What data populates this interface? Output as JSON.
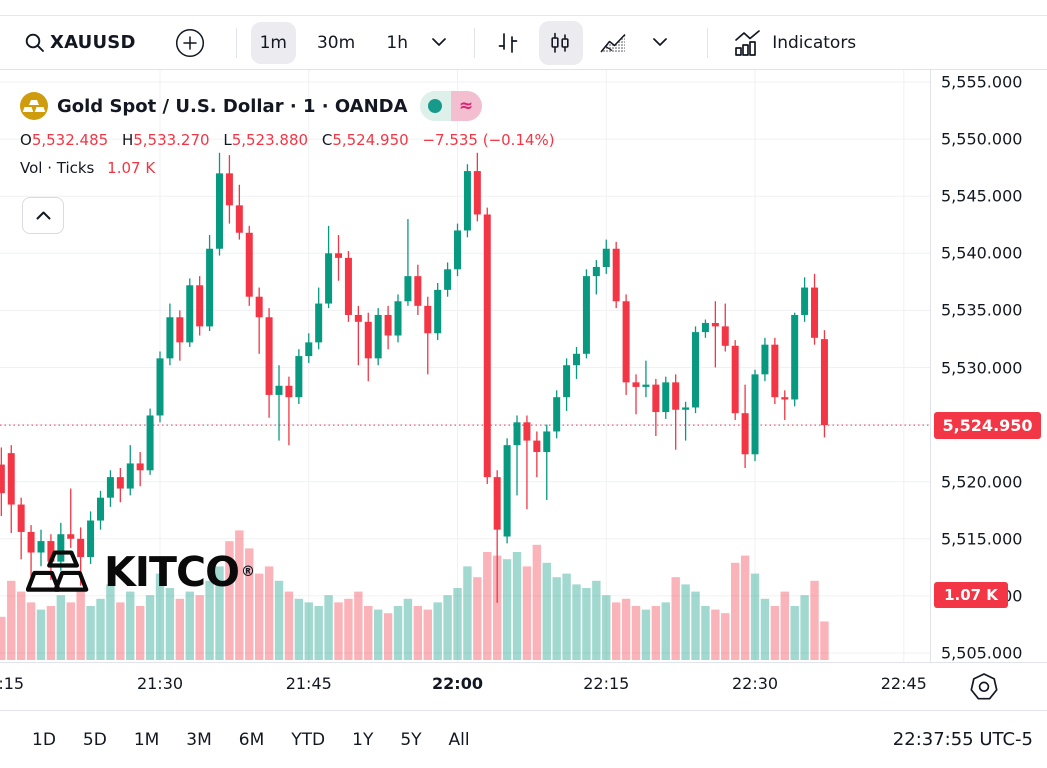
{
  "toolbar": {
    "symbol": "XAUUSD",
    "intervals": [
      "1m",
      "30m",
      "1h"
    ],
    "selected_interval": "1m",
    "selected_style": "candles",
    "indicators_label": "Indicators"
  },
  "legend": {
    "title": "Gold Spot / U.S. Dollar · 1 · OANDA",
    "ohlc": {
      "o_label": "O",
      "o": "5,532.485",
      "h_label": "H",
      "h": "5,533.270",
      "l_label": "L",
      "l": "5,523.880",
      "c_label": "C",
      "c": "5,524.950",
      "change": "−7.535 (−0.14%)"
    },
    "vol_label": "Vol · Ticks",
    "vol_value": "1.07 K"
  },
  "watermark": {
    "text": "KITCO",
    "reg": "®"
  },
  "price_axis": {
    "labels": [
      "5,555.000",
      "5,550.000",
      "5,545.000",
      "5,540.000",
      "5,535.000",
      "5,530.000",
      "5,525.000",
      "5,520.000",
      "5,515.000",
      "5,510.000",
      "5,505.000"
    ],
    "last_price_label": "5,524.950",
    "volume_badge": "1.07 K"
  },
  "bottom": {
    "ranges": [
      "1D",
      "5D",
      "1M",
      "3M",
      "6M",
      "YTD",
      "1Y",
      "5Y",
      "All"
    ],
    "clock": "22:37:55 UTC-5"
  },
  "colors": {
    "up": "#089981",
    "down": "#f23645",
    "accent_red": "#f23645",
    "grid": "#f0f1f4",
    "text": "#131722",
    "gold": "#cf9c0d"
  },
  "chart_data": {
    "type": "candlestick",
    "title": "Gold Spot / U.S. Dollar",
    "symbol": "XAUUSD",
    "venue": "OANDA",
    "interval": "1m",
    "start_time": "21:14",
    "ylim": [
      5505,
      5555
    ],
    "price_step": 5,
    "last_price": 5524.95,
    "last_volume_k": 1.07,
    "price_line": 5524.95,
    "time_ticks": [
      {
        "label": ":15",
        "i": 1,
        "bold": false
      },
      {
        "label": "21:30",
        "i": 16,
        "bold": false
      },
      {
        "label": "21:45",
        "i": 31,
        "bold": false
      },
      {
        "label": "22:00",
        "i": 46,
        "bold": true
      },
      {
        "label": "22:15",
        "i": 61,
        "bold": false
      },
      {
        "label": "22:30",
        "i": 76,
        "bold": false
      },
      {
        "label": "22:45",
        "i": 91,
        "bold": false
      }
    ],
    "candles": [
      [
        5521.5,
        5523.0,
        5517.0,
        5519.0,
        1.2
      ],
      [
        5522.5,
        5523.2,
        5515.5,
        5518.0,
        2.2
      ],
      [
        5518.0,
        5518.6,
        5513.2,
        5515.6,
        1.9
      ],
      [
        5515.6,
        5516.2,
        5511.6,
        5513.8,
        1.6
      ],
      [
        5513.8,
        5515.8,
        5512.6,
        5514.8,
        1.4
      ],
      [
        5514.8,
        5515.4,
        5511.4,
        5513.0,
        1.5
      ],
      [
        5513.0,
        5516.4,
        5512.2,
        5515.4,
        1.8
      ],
      [
        5515.4,
        5519.4,
        5514.2,
        5515.0,
        1.6
      ],
      [
        5515.0,
        5516.0,
        5510.9,
        5513.4,
        2.0
      ],
      [
        5513.4,
        5517.4,
        5512.8,
        5516.6,
        1.5
      ],
      [
        5516.6,
        5519.2,
        5515.8,
        5518.6,
        1.7
      ],
      [
        5518.6,
        5521.0,
        5517.8,
        5520.4,
        2.1
      ],
      [
        5520.4,
        5521.2,
        5518.2,
        5519.4,
        1.6
      ],
      [
        5519.4,
        5523.2,
        5518.8,
        5521.6,
        1.9
      ],
      [
        5521.6,
        5522.6,
        5519.6,
        5521.0,
        1.5
      ],
      [
        5521.0,
        5526.4,
        5520.6,
        5525.8,
        1.8
      ],
      [
        5525.8,
        5531.4,
        5525.2,
        5530.8,
        2.4
      ],
      [
        5530.8,
        5535.6,
        5530.2,
        5534.4,
        2.0
      ],
      [
        5534.4,
        5535.0,
        5530.6,
        5532.2,
        1.7
      ],
      [
        5532.2,
        5537.8,
        5531.8,
        5537.2,
        1.9
      ],
      [
        5537.2,
        5538.0,
        5532.8,
        5533.6,
        1.8
      ],
      [
        5533.6,
        5541.6,
        5533.2,
        5540.4,
        2.2
      ],
      [
        5540.4,
        5548.8,
        5539.8,
        5547.0,
        2.6
      ],
      [
        5547.0,
        5548.6,
        5542.6,
        5544.2,
        3.3
      ],
      [
        5544.2,
        5546.0,
        5541.2,
        5541.8,
        3.6
      ],
      [
        5541.8,
        5542.4,
        5535.4,
        5536.2,
        3.1
      ],
      [
        5536.2,
        5537.0,
        5531.2,
        5534.4,
        2.4
      ],
      [
        5534.4,
        5535.2,
        5525.6,
        5527.6,
        2.6
      ],
      [
        5527.6,
        5530.2,
        5523.6,
        5528.4,
        2.2
      ],
      [
        5528.4,
        5529.2,
        5523.2,
        5527.4,
        1.9
      ],
      [
        5527.4,
        5531.6,
        5526.8,
        5531.0,
        1.7
      ],
      [
        5531.0,
        5533.0,
        5530.4,
        5532.2,
        1.6
      ],
      [
        5532.2,
        5537.0,
        5531.6,
        5535.6,
        1.5
      ],
      [
        5535.6,
        5542.4,
        5535.2,
        5540.0,
        1.8
      ],
      [
        5540.0,
        5541.6,
        5537.6,
        5539.6,
        1.6
      ],
      [
        5539.6,
        5540.2,
        5534.0,
        5534.6,
        1.7
      ],
      [
        5534.6,
        5535.4,
        5530.2,
        5534.0,
        1.9
      ],
      [
        5534.0,
        5534.8,
        5528.8,
        5530.8,
        1.5
      ],
      [
        5530.8,
        5535.2,
        5530.2,
        5534.6,
        1.4
      ],
      [
        5534.6,
        5535.4,
        5531.6,
        5532.8,
        1.3
      ],
      [
        5532.8,
        5536.4,
        5532.2,
        5535.8,
        1.5
      ],
      [
        5535.8,
        5543.0,
        5535.4,
        5538.0,
        1.7
      ],
      [
        5538.0,
        5539.0,
        5534.6,
        5535.4,
        1.5
      ],
      [
        5535.4,
        5536.2,
        5529.4,
        5533.0,
        1.4
      ],
      [
        5533.0,
        5537.4,
        5532.4,
        5536.8,
        1.6
      ],
      [
        5536.8,
        5539.2,
        5536.2,
        5538.6,
        1.8
      ],
      [
        5538.6,
        5542.6,
        5538.0,
        5542.0,
        2.0
      ],
      [
        5542.0,
        5547.8,
        5541.4,
        5547.2,
        2.6
      ],
      [
        5547.2,
        5548.8,
        5542.8,
        5543.4,
        2.3
      ],
      [
        5543.4,
        5544.0,
        5519.8,
        5520.4,
        3.0
      ],
      [
        5520.4,
        5521.0,
        5509.4,
        5515.8,
        2.9
      ],
      [
        5515.2,
        5523.8,
        5514.6,
        5523.2,
        2.8
      ],
      [
        5523.2,
        5525.8,
        5518.8,
        5525.2,
        3.0
      ],
      [
        5525.2,
        5525.8,
        5517.6,
        5523.6,
        2.6
      ],
      [
        5523.6,
        5524.4,
        5520.4,
        5522.6,
        3.2
      ],
      [
        5522.6,
        5525.0,
        5518.4,
        5524.4,
        2.7
      ],
      [
        5524.4,
        5528.0,
        5523.8,
        5527.4,
        2.3
      ],
      [
        5527.4,
        5530.8,
        5526.2,
        5530.2,
        2.4
      ],
      [
        5530.2,
        5531.8,
        5529.0,
        5531.2,
        2.1
      ],
      [
        5531.2,
        5538.6,
        5530.8,
        5538.0,
        2.0
      ],
      [
        5538.0,
        5539.4,
        5536.4,
        5538.8,
        2.2
      ],
      [
        5538.8,
        5541.2,
        5538.2,
        5540.4,
        1.8
      ],
      [
        5540.4,
        5541.0,
        5535.2,
        5535.8,
        1.6
      ],
      [
        5535.8,
        5536.4,
        5527.6,
        5528.7,
        1.7
      ],
      [
        5528.7,
        5529.4,
        5525.9,
        5528.3,
        1.5
      ],
      [
        5528.3,
        5530.6,
        5527.4,
        5528.5,
        1.4
      ],
      [
        5528.5,
        5529.0,
        5524.0,
        5526.1,
        1.5
      ],
      [
        5526.1,
        5529.2,
        5525.5,
        5528.7,
        1.6
      ],
      [
        5528.7,
        5529.4,
        5522.8,
        5526.3,
        2.3
      ],
      [
        5526.3,
        5527.0,
        5523.6,
        5526.5,
        2.1
      ],
      [
        5526.5,
        5533.6,
        5526.0,
        5533.1,
        1.9
      ],
      [
        5533.1,
        5534.2,
        5532.6,
        5533.9,
        1.5
      ],
      [
        5533.9,
        5535.8,
        5530.0,
        5533.6,
        1.4
      ],
      [
        5533.6,
        5535.6,
        5531.4,
        5531.9,
        1.3
      ],
      [
        5531.9,
        5532.4,
        5525.4,
        5526.0,
        2.7
      ],
      [
        5526.0,
        5528.5,
        5521.2,
        5522.4,
        2.9
      ],
      [
        5522.4,
        5529.8,
        5521.8,
        5529.4,
        2.4
      ],
      [
        5529.4,
        5532.6,
        5528.8,
        5532.0,
        1.7
      ],
      [
        5532.0,
        5532.6,
        5526.8,
        5527.4,
        1.5
      ],
      [
        5527.4,
        5528.0,
        5525.4,
        5527.2,
        1.9
      ],
      [
        5527.2,
        5534.8,
        5526.6,
        5534.6,
        1.5
      ],
      [
        5534.6,
        5537.9,
        5534.0,
        5537.0,
        1.8
      ],
      [
        5537.0,
        5538.2,
        5532.0,
        5532.6,
        2.2
      ],
      [
        5532.485,
        5533.27,
        5523.88,
        5524.95,
        1.07
      ]
    ]
  }
}
